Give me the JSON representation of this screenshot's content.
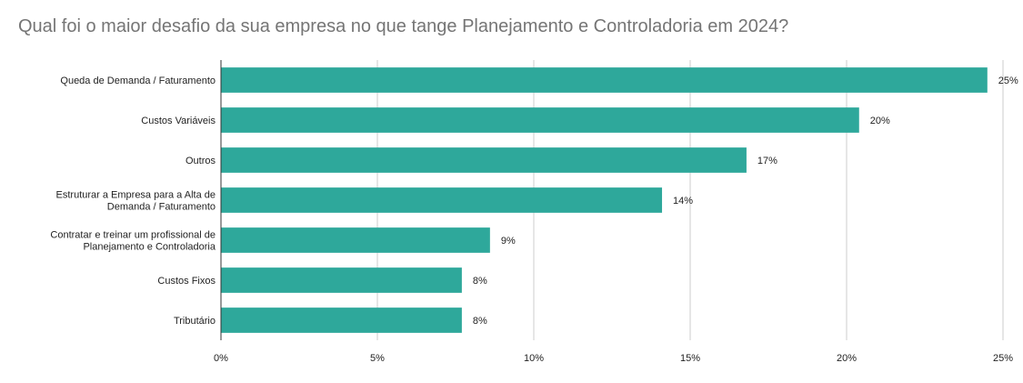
{
  "title": "Qual foi o maior desafio da sua empresa no que tange Planejamento e Controladoria em 2024?",
  "chart_data": {
    "type": "bar",
    "orientation": "horizontal",
    "title": "Qual foi o maior desafio da sua empresa no que tange Planejamento e Controladoria em 2024?",
    "categories": [
      [
        "Queda de Demanda / Faturamento"
      ],
      [
        "Custos Variáveis"
      ],
      [
        "Outros"
      ],
      [
        "Estruturar a Empresa para a Alta de",
        "Demanda / Faturamento"
      ],
      [
        "Contratar e treinar um profissional de",
        "Planejamento e Controladoria"
      ],
      [
        "Custos Fixos"
      ],
      [
        "Tributário"
      ]
    ],
    "values": [
      0.245,
      0.204,
      0.168,
      0.141,
      0.086,
      0.077,
      0.077
    ],
    "value_labels": [
      "25%",
      "20%",
      "17%",
      "14%",
      "9%",
      "8%",
      "8%"
    ],
    "x_ticks": [
      0,
      0.05,
      0.1,
      0.15,
      0.2,
      0.25
    ],
    "x_tick_labels": [
      "0%",
      "5%",
      "10%",
      "15%",
      "20%",
      "25%"
    ],
    "xlim": [
      0,
      0.25
    ],
    "grid": true,
    "colors": {
      "bar": "#2ea89b",
      "grid": "#cccccc",
      "axis": "#333333"
    }
  }
}
